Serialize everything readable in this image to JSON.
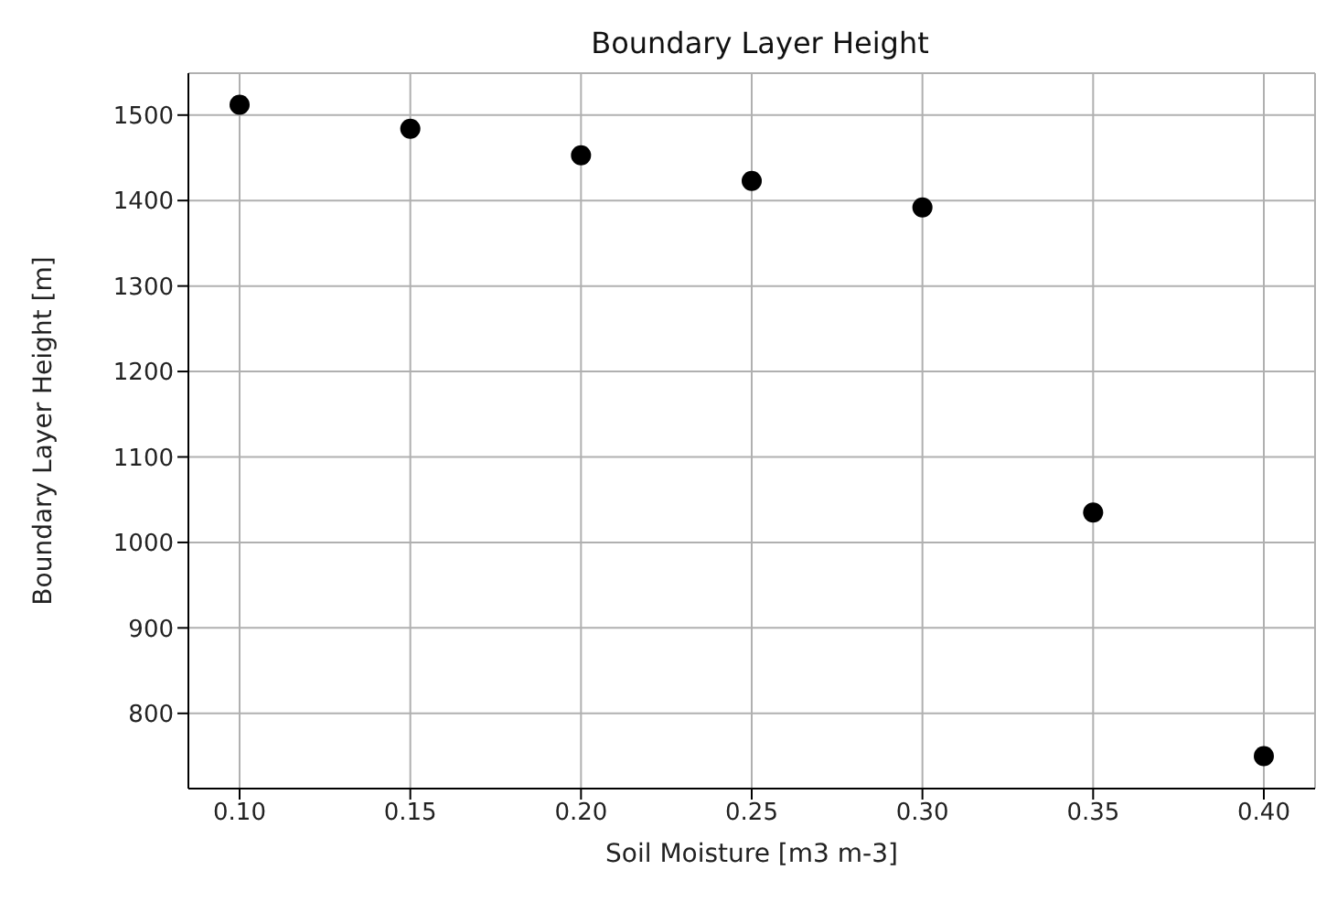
{
  "chart_data": {
    "type": "scatter",
    "title": "Boundary Layer Height",
    "xlabel": "Soil Moisture [m3 m-3]",
    "ylabel": "Boundary Layer Height [m]",
    "x": [
      0.1,
      0.15,
      0.2,
      0.25,
      0.3,
      0.35,
      0.4
    ],
    "series": [
      {
        "color": "#000000",
        "values": [
          1512,
          1484,
          1453,
          1423,
          1392,
          1035,
          750
        ]
      }
    ],
    "xlim": [
      0.085,
      0.415
    ],
    "xticks": [
      {
        "value": 0.1,
        "label": "0.10"
      },
      {
        "value": 0.15,
        "label": "0.15"
      },
      {
        "value": 0.2,
        "label": "0.20"
      },
      {
        "value": 0.25,
        "label": "0.25"
      },
      {
        "value": 0.3,
        "label": "0.30"
      },
      {
        "value": 0.35,
        "label": "0.35"
      },
      {
        "value": 0.4,
        "label": "0.40"
      }
    ],
    "ylim": [
      712,
      1549
    ],
    "yticks": [
      800,
      900,
      1000,
      1100,
      1200,
      1300,
      1400,
      1500
    ],
    "grid": true,
    "marker": "circle",
    "legend": false
  }
}
